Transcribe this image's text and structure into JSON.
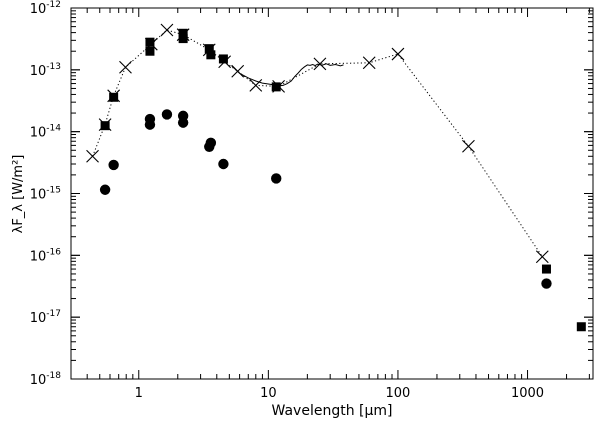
{
  "chart_data": {
    "type": "scatter",
    "title": "",
    "xlabel": "Wavelength [μm]",
    "ylabel": "λF_λ [W/m²]",
    "xscale": "log",
    "yscale": "log",
    "xlim": [
      0.3,
      3200
    ],
    "ylim": [
      1e-18,
      1e-12
    ],
    "x_ticks": [
      {
        "value": 1,
        "label": "1"
      },
      {
        "value": 10,
        "label": "10"
      },
      {
        "value": 100,
        "label": "100"
      },
      {
        "value": 1000,
        "label": "1000"
      }
    ],
    "y_ticks": [
      {
        "value": 1e-18,
        "base": "10",
        "exp": "-18"
      },
      {
        "value": 1e-17,
        "base": "10",
        "exp": "-17"
      },
      {
        "value": 1e-16,
        "base": "10",
        "exp": "-16"
      },
      {
        "value": 1e-15,
        "base": "10",
        "exp": "-15"
      },
      {
        "value": 1e-14,
        "base": "10",
        "exp": "-14"
      },
      {
        "value": 1e-13,
        "base": "10",
        "exp": "-13"
      },
      {
        "value": 1e-12,
        "base": "10",
        "exp": "-12"
      }
    ],
    "grid": false,
    "legend": "none",
    "series": [
      {
        "marker": "cross",
        "line": "dotted",
        "points": [
          [
            0.44,
            4e-15
          ],
          [
            0.55,
            1.3e-14
          ],
          [
            0.64,
            3.8e-14
          ],
          [
            0.79,
            1.1e-13
          ],
          [
            1.25,
            2.6e-13
          ],
          [
            1.65,
            4.4e-13
          ],
          [
            2.2,
            3.7e-13
          ],
          [
            3.5,
            2.1e-13
          ],
          [
            4.6,
            1.35e-13
          ],
          [
            5.8,
            9.5e-14
          ],
          [
            8.0,
            5.6e-14
          ],
          [
            12,
            5.4e-14
          ],
          [
            25,
            1.25e-13
          ],
          [
            60,
            1.3e-13
          ],
          [
            100,
            1.8e-13
          ],
          [
            350,
            5.8e-15
          ],
          [
            1300,
            9.5e-17
          ]
        ]
      },
      {
        "marker": "square",
        "points": [
          [
            0.55,
            1.25e-14
          ],
          [
            0.64,
            3.6e-14
          ],
          [
            1.22,
            2.8e-13
          ],
          [
            1.22,
            2e-13
          ],
          [
            2.2,
            3.9e-13
          ],
          [
            2.2,
            3.2e-13
          ],
          [
            3.5,
            2.2e-13
          ],
          [
            3.6,
            1.75e-13
          ],
          [
            4.5,
            1.5e-13
          ],
          [
            11.5,
            5.3e-14
          ],
          [
            1400,
            6e-17
          ],
          [
            2600,
            7e-18
          ]
        ]
      },
      {
        "marker": "circle",
        "points": [
          [
            0.55,
            1.15e-15
          ],
          [
            0.64,
            2.9e-15
          ],
          [
            1.22,
            1.6e-14
          ],
          [
            1.22,
            1.3e-14
          ],
          [
            1.65,
            1.9e-14
          ],
          [
            2.2,
            1.8e-14
          ],
          [
            2.2,
            1.4e-14
          ],
          [
            3.5,
            5.7e-15
          ],
          [
            3.6,
            6.6e-15
          ],
          [
            4.5,
            3e-15
          ],
          [
            11.5,
            1.75e-15
          ],
          [
            1400,
            3.5e-17
          ]
        ]
      },
      {
        "marker": "none",
        "line": "solid",
        "points": [
          [
            5.2,
            1.17e-13
          ],
          [
            6.0,
            8.8e-14
          ],
          [
            7.0,
            7.4e-14
          ],
          [
            8.0,
            6.6e-14
          ],
          [
            9.0,
            6.1e-14
          ],
          [
            10.0,
            5.9e-14
          ],
          [
            11.0,
            5.7e-14
          ],
          [
            12.0,
            5.5e-14
          ],
          [
            13.0,
            5.6e-14
          ],
          [
            14.0,
            6e-14
          ],
          [
            15.0,
            6.6e-14
          ],
          [
            16.0,
            7.8e-14
          ],
          [
            17.0,
            8.9e-14
          ],
          [
            18.0,
            1.02e-13
          ],
          [
            19.0,
            1.12e-13
          ],
          [
            20.0,
            1.2e-13
          ],
          [
            21.0,
            1.18e-13
          ],
          [
            22.0,
            1.22e-13
          ],
          [
            23.0,
            1.17e-13
          ],
          [
            24.0,
            1.24e-13
          ],
          [
            26.0,
            1.19e-13
          ],
          [
            28.0,
            1.25e-13
          ],
          [
            30.0,
            1.18e-13
          ],
          [
            33.0,
            1.22e-13
          ],
          [
            36.0,
            1.16e-13
          ],
          [
            38.0,
            1.2e-13
          ]
        ]
      }
    ]
  }
}
